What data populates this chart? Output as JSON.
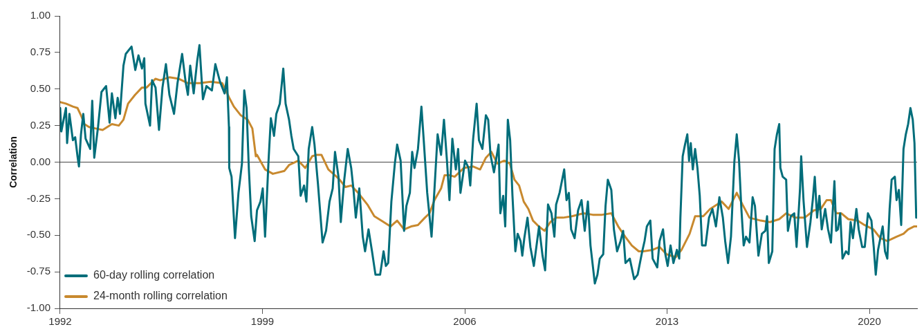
{
  "chart_data": {
    "type": "line",
    "ylabel": "Correlation",
    "xlim": [
      1992,
      2021.65
    ],
    "xticks": [
      1992,
      1999,
      2006,
      2013,
      2020
    ],
    "ylim": [
      -1,
      1
    ],
    "yticks": [
      {
        "value": 1,
        "label": "1.00"
      },
      {
        "value": 0.75,
        "label": "0.75"
      },
      {
        "value": 0.5,
        "label": "0.50"
      },
      {
        "value": 0.25,
        "label": "0.25"
      },
      {
        "value": 0,
        "label": "0.00"
      },
      {
        "value": -0.25,
        "label": "-0.25"
      },
      {
        "value": -0.5,
        "label": "-0.50"
      },
      {
        "value": -0.75,
        "label": "-0.75"
      },
      {
        "value": -1,
        "label": "-1.00"
      }
    ],
    "grid": false,
    "legend": "bottom left",
    "ref_lines": [
      {
        "axis": "y",
        "value": 0,
        "color": "#444444"
      }
    ],
    "series": [
      {
        "name": "60-day rolling correlation",
        "color": "#006d7a",
        "x": [
          1992.0,
          1992.04,
          1992.2,
          1992.24,
          1992.32,
          1992.44,
          1992.52,
          1992.6,
          1992.65,
          1992.72,
          1992.8,
          1992.88,
          1993.04,
          1993.11,
          1993.18,
          1993.31,
          1993.43,
          1993.59,
          1993.71,
          1993.79,
          1993.91,
          1993.99,
          1994.07,
          1994.19,
          1994.27,
          1994.47,
          1994.6,
          1994.71,
          1994.83,
          1994.91,
          1994.95,
          1995.11,
          1995.18,
          1995.3,
          1995.42,
          1995.54,
          1995.66,
          1995.78,
          1995.94,
          1996.06,
          1996.22,
          1996.34,
          1996.42,
          1996.5,
          1996.62,
          1996.74,
          1996.82,
          1996.9,
          1996.94,
          1997.06,
          1997.25,
          1997.37,
          1997.53,
          1997.69,
          1997.77,
          1997.84,
          1997.85,
          1997.93,
          1998.05,
          1998.17,
          1998.29,
          1998.37,
          1998.45,
          1998.53,
          1998.61,
          1998.73,
          1998.81,
          1998.93,
          1999.01,
          1999.09,
          1999.21,
          1999.29,
          1999.4,
          1999.48,
          1999.6,
          1999.72,
          1999.8,
          1999.92,
          2000.0,
          2000.08,
          2000.24,
          2000.32,
          2000.44,
          2000.52,
          2000.6,
          2000.72,
          2000.8,
          2000.92,
          2001.08,
          2001.2,
          2001.32,
          2001.43,
          2001.51,
          2001.63,
          2001.71,
          2001.83,
          2001.95,
          2002.07,
          2002.15,
          2002.23,
          2002.35,
          2002.47,
          2002.55,
          2002.67,
          2002.79,
          2002.91,
          2003.07,
          2003.19,
          2003.27,
          2003.35,
          2003.46,
          2003.58,
          2003.66,
          2003.78,
          2003.9,
          2003.98,
          2004.1,
          2004.18,
          2004.26,
          2004.38,
          2004.5,
          2004.58,
          2004.7,
          2004.85,
          2004.95,
          2005.06,
          2005.18,
          2005.28,
          2005.38,
          2005.47,
          2005.57,
          2005.69,
          2005.77,
          2005.85,
          2006.01,
          2006.13,
          2006.19,
          2006.29,
          2006.41,
          2006.49,
          2006.61,
          2006.73,
          2006.81,
          2006.89,
          2007.01,
          2007.17,
          2007.23,
          2007.33,
          2007.4,
          2007.49,
          2007.57,
          2007.65,
          2007.75,
          2007.83,
          2007.93,
          2007.99,
          2008.06,
          2008.17,
          2008.27,
          2008.39,
          2008.57,
          2008.69,
          2008.78,
          2008.88,
          2009.0,
          2009.1,
          2009.16,
          2009.28,
          2009.44,
          2009.52,
          2009.6,
          2009.68,
          2009.8,
          2009.92,
          2010.04,
          2010.15,
          2010.26,
          2010.35,
          2010.5,
          2010.59,
          2010.67,
          2010.79,
          2010.87,
          2010.95,
          2011.07,
          2011.16,
          2011.27,
          2011.39,
          2011.48,
          2011.56,
          2011.71,
          2011.86,
          2011.98,
          2012.14,
          2012.22,
          2012.3,
          2012.42,
          2012.5,
          2012.66,
          2012.74,
          2012.86,
          2012.94,
          2013.02,
          2013.12,
          2013.22,
          2013.34,
          2013.42,
          2013.46,
          2013.54,
          2013.62,
          2013.7,
          2013.76,
          2013.82,
          2013.89,
          2013.97,
          2014.05,
          2014.13,
          2014.21,
          2014.33,
          2014.45,
          2014.57,
          2014.69,
          2014.81,
          2014.93,
          2015.01,
          2015.11,
          2015.21,
          2015.33,
          2015.41,
          2015.49,
          2015.57,
          2015.65,
          2015.73,
          2015.85,
          2015.96,
          2016.04,
          2016.16,
          2016.28,
          2016.4,
          2016.46,
          2016.52,
          2016.64,
          2016.72,
          2016.8,
          2016.88,
          2016.92,
          2017.0,
          2017.12,
          2017.18,
          2017.28,
          2017.4,
          2017.48,
          2017.6,
          2017.64,
          2017.72,
          2017.84,
          2017.96,
          2018.04,
          2018.11,
          2018.19,
          2018.27,
          2018.35,
          2018.47,
          2018.57,
          2018.67,
          2018.79,
          2018.85,
          2018.91,
          2018.99,
          2019.07,
          2019.19,
          2019.28,
          2019.35,
          2019.43,
          2019.55,
          2019.63,
          2019.75,
          2019.84,
          2019.95,
          2020.07,
          2020.15,
          2020.22,
          2020.3,
          2020.46,
          2020.54,
          2020.62,
          2020.7,
          2020.77,
          2020.88,
          2020.94,
          2021.02,
          2021.1,
          2021.18,
          2021.26,
          2021.34,
          2021.42,
          2021.5,
          2021.56,
          2021.62
        ],
        "values": [
          0.37,
          0.21,
          0.37,
          0.13,
          0.33,
          0.15,
          0.17,
          0.04,
          -0.03,
          0.19,
          0.33,
          0.16,
          0.09,
          0.42,
          0.03,
          0.24,
          0.48,
          0.52,
          0.27,
          0.47,
          0.3,
          0.44,
          0.33,
          0.66,
          0.74,
          0.79,
          0.63,
          0.73,
          0.64,
          0.71,
          0.4,
          0.25,
          0.56,
          0.51,
          0.22,
          0.51,
          0.67,
          0.46,
          0.33,
          0.54,
          0.74,
          0.55,
          0.46,
          0.66,
          0.47,
          0.69,
          0.8,
          0.55,
          0.43,
          0.52,
          0.49,
          0.67,
          0.55,
          0.47,
          0.58,
          0.24,
          -0.04,
          -0.1,
          -0.52,
          -0.21,
          -0.01,
          0.49,
          0.37,
          -0.05,
          -0.37,
          -0.54,
          -0.33,
          -0.27,
          -0.18,
          -0.51,
          0.01,
          0.3,
          0.18,
          0.33,
          0.4,
          0.64,
          0.4,
          0.29,
          0.18,
          0.09,
          0.04,
          -0.23,
          -0.16,
          -0.27,
          0.09,
          0.24,
          0.12,
          -0.15,
          -0.55,
          -0.47,
          -0.27,
          -0.18,
          0.07,
          -0.1,
          -0.41,
          -0.12,
          0.09,
          -0.04,
          -0.19,
          -0.38,
          -0.18,
          -0.51,
          -0.61,
          -0.46,
          -0.61,
          -0.77,
          -0.77,
          -0.61,
          -0.71,
          -0.69,
          -0.27,
          -0.01,
          0.12,
          0.01,
          -0.47,
          -0.3,
          -0.21,
          0.07,
          -0.04,
          0.09,
          0.38,
          0.15,
          -0.21,
          -0.51,
          -0.19,
          0.19,
          0.05,
          0.29,
          0.02,
          -0.26,
          0.16,
          -0.05,
          0.09,
          -0.21,
          0.01,
          -0.04,
          -0.16,
          0.16,
          0.4,
          0.15,
          0.09,
          0.32,
          0.29,
          0.05,
          -0.07,
          0.12,
          -0.35,
          -0.23,
          -0.44,
          0.29,
          0.15,
          -0.23,
          -0.61,
          -0.49,
          -0.54,
          -0.64,
          -0.52,
          -0.38,
          -0.58,
          -0.71,
          -0.44,
          -0.64,
          -0.74,
          -0.29,
          -0.35,
          -0.51,
          -0.29,
          -0.21,
          -0.05,
          -0.26,
          -0.21,
          -0.46,
          -0.52,
          -0.33,
          -0.26,
          -0.47,
          -0.27,
          -0.57,
          -0.83,
          -0.77,
          -0.66,
          -0.63,
          -0.3,
          -0.12,
          -0.19,
          -0.46,
          -0.61,
          -0.54,
          -0.47,
          -0.69,
          -0.66,
          -0.8,
          -0.77,
          -0.61,
          -0.54,
          -0.44,
          -0.4,
          -0.66,
          -0.72,
          -0.54,
          -0.46,
          -0.63,
          -0.71,
          -0.57,
          -0.69,
          -0.6,
          -0.66,
          -0.38,
          0.04,
          0.12,
          0.19,
          0.01,
          0.13,
          -0.05,
          0.09,
          -0.04,
          -0.23,
          -0.57,
          -0.57,
          -0.38,
          -0.32,
          -0.44,
          -0.24,
          -0.38,
          -0.54,
          -0.69,
          -0.51,
          0.01,
          0.19,
          0.01,
          -0.32,
          -0.57,
          -0.51,
          -0.55,
          -0.24,
          -0.3,
          -0.64,
          -0.49,
          -0.47,
          -0.37,
          -0.69,
          -0.61,
          0.09,
          0.19,
          0.26,
          -0.04,
          -0.1,
          -0.12,
          -0.47,
          -0.37,
          -0.35,
          -0.58,
          -0.18,
          0.04,
          -0.26,
          -0.58,
          -0.41,
          -0.26,
          -0.1,
          -0.38,
          -0.23,
          -0.46,
          -0.32,
          -0.46,
          -0.55,
          -0.13,
          -0.47,
          -0.46,
          -0.35,
          -0.66,
          -0.61,
          -0.63,
          -0.41,
          -0.52,
          -0.32,
          -0.46,
          -0.58,
          -0.58,
          -0.35,
          -0.4,
          -0.58,
          -0.77,
          -0.6,
          -0.44,
          -0.61,
          -0.66,
          -0.32,
          -0.12,
          -0.1,
          -0.26,
          -0.19,
          -0.43,
          0.09,
          0.19,
          0.26,
          0.37,
          0.29,
          0.13,
          -0.38
        ]
      },
      {
        "name": "24-month rolling correlation",
        "color": "#c8892e",
        "x": [
          1992.0,
          1992.2,
          1992.44,
          1992.6,
          1992.72,
          1992.84,
          1993.0,
          1993.23,
          1993.47,
          1993.79,
          1994.03,
          1994.19,
          1994.35,
          1994.59,
          1994.83,
          1994.99,
          1995.3,
          1995.46,
          1995.78,
          1996.1,
          1996.42,
          1996.82,
          1997.21,
          1997.61,
          1997.85,
          1998.01,
          1998.25,
          1998.49,
          1998.65,
          1998.77,
          1998.81,
          1999.09,
          1999.36,
          1999.76,
          1999.92,
          2000.24,
          2000.48,
          2000.72,
          2000.88,
          2001.04,
          2001.28,
          2001.51,
          2001.67,
          2001.87,
          2002.07,
          2002.31,
          2002.63,
          2002.87,
          2003.11,
          2003.43,
          2003.66,
          2003.9,
          2004.14,
          2004.38,
          2004.62,
          2004.78,
          2004.95,
          2005.18,
          2005.3,
          2005.48,
          2005.65,
          2005.97,
          2006.29,
          2006.53,
          2006.73,
          2006.92,
          2007.13,
          2007.37,
          2007.56,
          2007.72,
          2007.88,
          2008.04,
          2008.2,
          2008.36,
          2008.56,
          2008.76,
          2008.96,
          2009.16,
          2009.4,
          2009.71,
          2010.11,
          2010.43,
          2010.75,
          2011.07,
          2011.31,
          2011.55,
          2011.78,
          2012.02,
          2012.18,
          2012.5,
          2012.74,
          2012.98,
          2013.3,
          2013.5,
          2013.78,
          2013.97,
          2014.25,
          2014.49,
          2014.89,
          2015.13,
          2015.41,
          2015.61,
          2015.85,
          2016.24,
          2016.56,
          2016.88,
          2017.12,
          2017.44,
          2017.76,
          2018.08,
          2018.32,
          2018.52,
          2018.67,
          2018.85,
          2019.03,
          2019.27,
          2019.59,
          2019.83,
          2020.14,
          2020.38,
          2020.62,
          2020.94,
          2021.18,
          2021.34,
          2021.54,
          2021.64
        ],
        "values": [
          0.41,
          0.4,
          0.38,
          0.37,
          0.32,
          0.26,
          0.24,
          0.23,
          0.22,
          0.26,
          0.25,
          0.29,
          0.4,
          0.46,
          0.51,
          0.51,
          0.57,
          0.56,
          0.58,
          0.57,
          0.54,
          0.54,
          0.55,
          0.54,
          0.44,
          0.38,
          0.32,
          0.29,
          0.23,
          0.04,
          0.05,
          -0.05,
          -0.08,
          -0.06,
          -0.02,
          0.01,
          -0.04,
          0.04,
          0.05,
          0.05,
          -0.05,
          -0.09,
          -0.12,
          -0.17,
          -0.16,
          -0.21,
          -0.29,
          -0.37,
          -0.4,
          -0.44,
          -0.4,
          -0.46,
          -0.44,
          -0.43,
          -0.38,
          -0.35,
          -0.26,
          -0.18,
          -0.09,
          -0.09,
          -0.1,
          -0.04,
          -0.03,
          -0.05,
          0.03,
          0.07,
          -0.01,
          0.01,
          -0.01,
          -0.12,
          -0.16,
          -0.27,
          -0.32,
          -0.4,
          -0.44,
          -0.47,
          -0.41,
          -0.38,
          -0.38,
          -0.37,
          -0.35,
          -0.36,
          -0.36,
          -0.35,
          -0.44,
          -0.51,
          -0.57,
          -0.61,
          -0.61,
          -0.6,
          -0.58,
          -0.63,
          -0.65,
          -0.6,
          -0.49,
          -0.37,
          -0.37,
          -0.32,
          -0.27,
          -0.32,
          -0.21,
          -0.29,
          -0.38,
          -0.4,
          -0.41,
          -0.39,
          -0.35,
          -0.38,
          -0.38,
          -0.33,
          -0.32,
          -0.26,
          -0.26,
          -0.35,
          -0.35,
          -0.39,
          -0.4,
          -0.43,
          -0.46,
          -0.52,
          -0.54,
          -0.51,
          -0.49,
          -0.46,
          -0.44,
          -0.44
        ]
      }
    ]
  }
}
